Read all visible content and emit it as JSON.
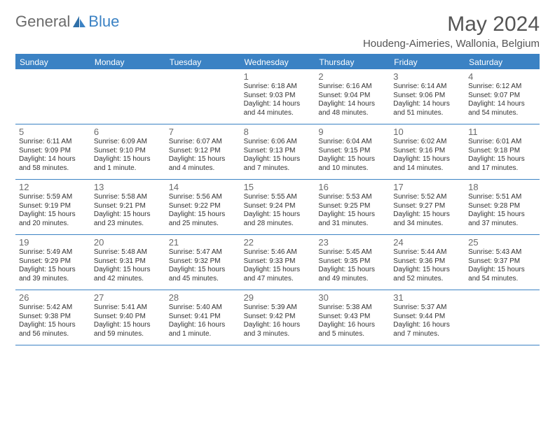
{
  "logo": {
    "text1": "General",
    "text2": "Blue"
  },
  "title": "May 2024",
  "location": "Houdeng-Aimeries, Wallonia, Belgium",
  "colors": {
    "accent": "#3b82c4",
    "text": "#333333",
    "muted": "#6b6b6b",
    "background": "#ffffff"
  },
  "weekdays": [
    "Sunday",
    "Monday",
    "Tuesday",
    "Wednesday",
    "Thursday",
    "Friday",
    "Saturday"
  ],
  "weeks": [
    [
      {
        "num": "",
        "sunrise": "",
        "sunset": "",
        "daylight": ""
      },
      {
        "num": "",
        "sunrise": "",
        "sunset": "",
        "daylight": ""
      },
      {
        "num": "",
        "sunrise": "",
        "sunset": "",
        "daylight": ""
      },
      {
        "num": "1",
        "sunrise": "Sunrise: 6:18 AM",
        "sunset": "Sunset: 9:03 PM",
        "daylight": "Daylight: 14 hours and 44 minutes."
      },
      {
        "num": "2",
        "sunrise": "Sunrise: 6:16 AM",
        "sunset": "Sunset: 9:04 PM",
        "daylight": "Daylight: 14 hours and 48 minutes."
      },
      {
        "num": "3",
        "sunrise": "Sunrise: 6:14 AM",
        "sunset": "Sunset: 9:06 PM",
        "daylight": "Daylight: 14 hours and 51 minutes."
      },
      {
        "num": "4",
        "sunrise": "Sunrise: 6:12 AM",
        "sunset": "Sunset: 9:07 PM",
        "daylight": "Daylight: 14 hours and 54 minutes."
      }
    ],
    [
      {
        "num": "5",
        "sunrise": "Sunrise: 6:11 AM",
        "sunset": "Sunset: 9:09 PM",
        "daylight": "Daylight: 14 hours and 58 minutes."
      },
      {
        "num": "6",
        "sunrise": "Sunrise: 6:09 AM",
        "sunset": "Sunset: 9:10 PM",
        "daylight": "Daylight: 15 hours and 1 minute."
      },
      {
        "num": "7",
        "sunrise": "Sunrise: 6:07 AM",
        "sunset": "Sunset: 9:12 PM",
        "daylight": "Daylight: 15 hours and 4 minutes."
      },
      {
        "num": "8",
        "sunrise": "Sunrise: 6:06 AM",
        "sunset": "Sunset: 9:13 PM",
        "daylight": "Daylight: 15 hours and 7 minutes."
      },
      {
        "num": "9",
        "sunrise": "Sunrise: 6:04 AM",
        "sunset": "Sunset: 9:15 PM",
        "daylight": "Daylight: 15 hours and 10 minutes."
      },
      {
        "num": "10",
        "sunrise": "Sunrise: 6:02 AM",
        "sunset": "Sunset: 9:16 PM",
        "daylight": "Daylight: 15 hours and 14 minutes."
      },
      {
        "num": "11",
        "sunrise": "Sunrise: 6:01 AM",
        "sunset": "Sunset: 9:18 PM",
        "daylight": "Daylight: 15 hours and 17 minutes."
      }
    ],
    [
      {
        "num": "12",
        "sunrise": "Sunrise: 5:59 AM",
        "sunset": "Sunset: 9:19 PM",
        "daylight": "Daylight: 15 hours and 20 minutes."
      },
      {
        "num": "13",
        "sunrise": "Sunrise: 5:58 AM",
        "sunset": "Sunset: 9:21 PM",
        "daylight": "Daylight: 15 hours and 23 minutes."
      },
      {
        "num": "14",
        "sunrise": "Sunrise: 5:56 AM",
        "sunset": "Sunset: 9:22 PM",
        "daylight": "Daylight: 15 hours and 25 minutes."
      },
      {
        "num": "15",
        "sunrise": "Sunrise: 5:55 AM",
        "sunset": "Sunset: 9:24 PM",
        "daylight": "Daylight: 15 hours and 28 minutes."
      },
      {
        "num": "16",
        "sunrise": "Sunrise: 5:53 AM",
        "sunset": "Sunset: 9:25 PM",
        "daylight": "Daylight: 15 hours and 31 minutes."
      },
      {
        "num": "17",
        "sunrise": "Sunrise: 5:52 AM",
        "sunset": "Sunset: 9:27 PM",
        "daylight": "Daylight: 15 hours and 34 minutes."
      },
      {
        "num": "18",
        "sunrise": "Sunrise: 5:51 AM",
        "sunset": "Sunset: 9:28 PM",
        "daylight": "Daylight: 15 hours and 37 minutes."
      }
    ],
    [
      {
        "num": "19",
        "sunrise": "Sunrise: 5:49 AM",
        "sunset": "Sunset: 9:29 PM",
        "daylight": "Daylight: 15 hours and 39 minutes."
      },
      {
        "num": "20",
        "sunrise": "Sunrise: 5:48 AM",
        "sunset": "Sunset: 9:31 PM",
        "daylight": "Daylight: 15 hours and 42 minutes."
      },
      {
        "num": "21",
        "sunrise": "Sunrise: 5:47 AM",
        "sunset": "Sunset: 9:32 PM",
        "daylight": "Daylight: 15 hours and 45 minutes."
      },
      {
        "num": "22",
        "sunrise": "Sunrise: 5:46 AM",
        "sunset": "Sunset: 9:33 PM",
        "daylight": "Daylight: 15 hours and 47 minutes."
      },
      {
        "num": "23",
        "sunrise": "Sunrise: 5:45 AM",
        "sunset": "Sunset: 9:35 PM",
        "daylight": "Daylight: 15 hours and 49 minutes."
      },
      {
        "num": "24",
        "sunrise": "Sunrise: 5:44 AM",
        "sunset": "Sunset: 9:36 PM",
        "daylight": "Daylight: 15 hours and 52 minutes."
      },
      {
        "num": "25",
        "sunrise": "Sunrise: 5:43 AM",
        "sunset": "Sunset: 9:37 PM",
        "daylight": "Daylight: 15 hours and 54 minutes."
      }
    ],
    [
      {
        "num": "26",
        "sunrise": "Sunrise: 5:42 AM",
        "sunset": "Sunset: 9:38 PM",
        "daylight": "Daylight: 15 hours and 56 minutes."
      },
      {
        "num": "27",
        "sunrise": "Sunrise: 5:41 AM",
        "sunset": "Sunset: 9:40 PM",
        "daylight": "Daylight: 15 hours and 59 minutes."
      },
      {
        "num": "28",
        "sunrise": "Sunrise: 5:40 AM",
        "sunset": "Sunset: 9:41 PM",
        "daylight": "Daylight: 16 hours and 1 minute."
      },
      {
        "num": "29",
        "sunrise": "Sunrise: 5:39 AM",
        "sunset": "Sunset: 9:42 PM",
        "daylight": "Daylight: 16 hours and 3 minutes."
      },
      {
        "num": "30",
        "sunrise": "Sunrise: 5:38 AM",
        "sunset": "Sunset: 9:43 PM",
        "daylight": "Daylight: 16 hours and 5 minutes."
      },
      {
        "num": "31",
        "sunrise": "Sunrise: 5:37 AM",
        "sunset": "Sunset: 9:44 PM",
        "daylight": "Daylight: 16 hours and 7 minutes."
      },
      {
        "num": "",
        "sunrise": "",
        "sunset": "",
        "daylight": ""
      }
    ]
  ]
}
